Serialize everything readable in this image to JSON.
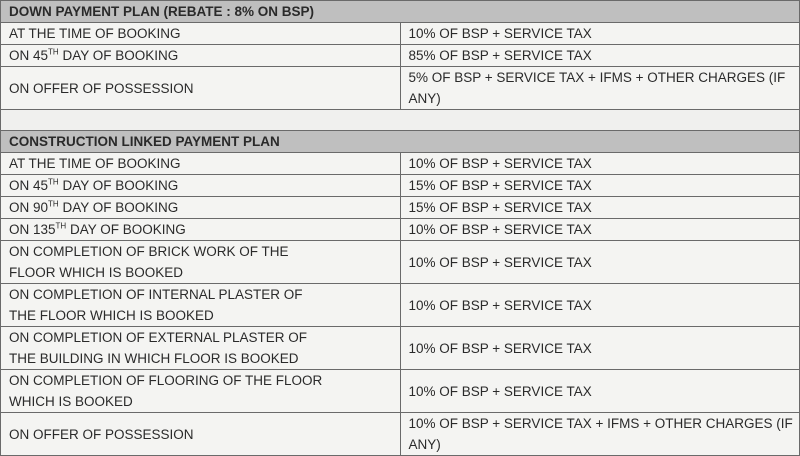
{
  "down_payment_plan": {
    "title": "DOWN PAYMENT PLAN (REBATE : 8% ON BSP)",
    "rows": [
      {
        "stage": "AT THE TIME OF BOOKING",
        "sup": "",
        "rest": "",
        "payment": "10% OF BSP + SERVICE TAX"
      },
      {
        "stage": "ON 45",
        "sup": "TH",
        "rest": " DAY OF BOOKING",
        "payment": "85% OF BSP + SERVICE TAX"
      },
      {
        "stage": "ON OFFER OF POSSESSION",
        "sup": "",
        "rest": "",
        "payment": "5% OF BSP + SERVICE TAX + IFMS + OTHER CHARGES (IF ANY)"
      }
    ]
  },
  "construction_linked_plan": {
    "title": "CONSTRUCTION LINKED PAYMENT PLAN",
    "rows": [
      {
        "stage": "AT THE TIME OF BOOKING",
        "sup": "",
        "rest": "",
        "payment": "10% OF BSP + SERVICE TAX"
      },
      {
        "stage": "ON 45",
        "sup": "TH",
        "rest": " DAY OF BOOKING",
        "payment": "15% OF BSP + SERVICE TAX"
      },
      {
        "stage": "ON 90",
        "sup": "TH",
        "rest": " DAY OF BOOKING",
        "payment": "15% OF BSP + SERVICE TAX"
      },
      {
        "stage": "ON 135",
        "sup": "TH",
        "rest": " DAY OF BOOKING",
        "payment": "10% OF BSP + SERVICE TAX"
      },
      {
        "stage": "ON COMPLETION OF BRICK WORK OF THE",
        "sup": "",
        "rest": "FLOOR WHICH IS BOOKED",
        "payment": "10% OF BSP + SERVICE TAX"
      },
      {
        "stage": "ON COMPLETION OF INTERNAL PLASTER OF",
        "sup": "",
        "rest": "THE FLOOR WHICH IS BOOKED",
        "payment": "10% OF BSP + SERVICE TAX"
      },
      {
        "stage": "ON COMPLETION OF EXTERNAL PLASTER OF",
        "sup": "",
        "rest": "THE BUILDING IN WHICH FLOOR IS BOOKED",
        "payment": "10% OF BSP + SERVICE TAX"
      },
      {
        "stage": "ON COMPLETION OF FLOORING OF THE FLOOR",
        "sup": "",
        "rest": "WHICH IS BOOKED",
        "payment": "10% OF BSP + SERVICE TAX"
      },
      {
        "stage": "ON OFFER OF POSSESSION",
        "sup": "",
        "rest": "",
        "payment": "10% OF BSP + SERVICE TAX + IFMS + OTHER CHARGES (IF ANY)"
      }
    ]
  }
}
